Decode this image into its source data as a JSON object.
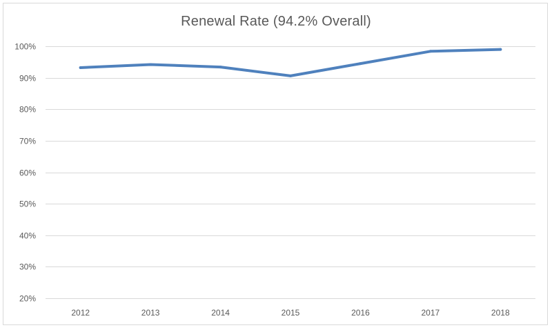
{
  "chart_data": {
    "type": "line",
    "title": "Renewal Rate (94.2% Overall)",
    "xlabel": "",
    "ylabel": "",
    "categories": [
      "2012",
      "2013",
      "2014",
      "2015",
      "2016",
      "2017",
      "2018"
    ],
    "series": [
      {
        "values": [
          93.2,
          94.2,
          93.4,
          90.6,
          94.5,
          98.4,
          99.0
        ],
        "color": "#4f81bd"
      }
    ],
    "ylim": [
      20,
      100
    ],
    "y_ticks": [
      20,
      30,
      40,
      50,
      60,
      70,
      80,
      90,
      100
    ],
    "y_tick_labels": [
      "20%",
      "30%",
      "40%",
      "50%",
      "60%",
      "70%",
      "80%",
      "90%",
      "100%"
    ],
    "grid": true,
    "legend": "none"
  }
}
